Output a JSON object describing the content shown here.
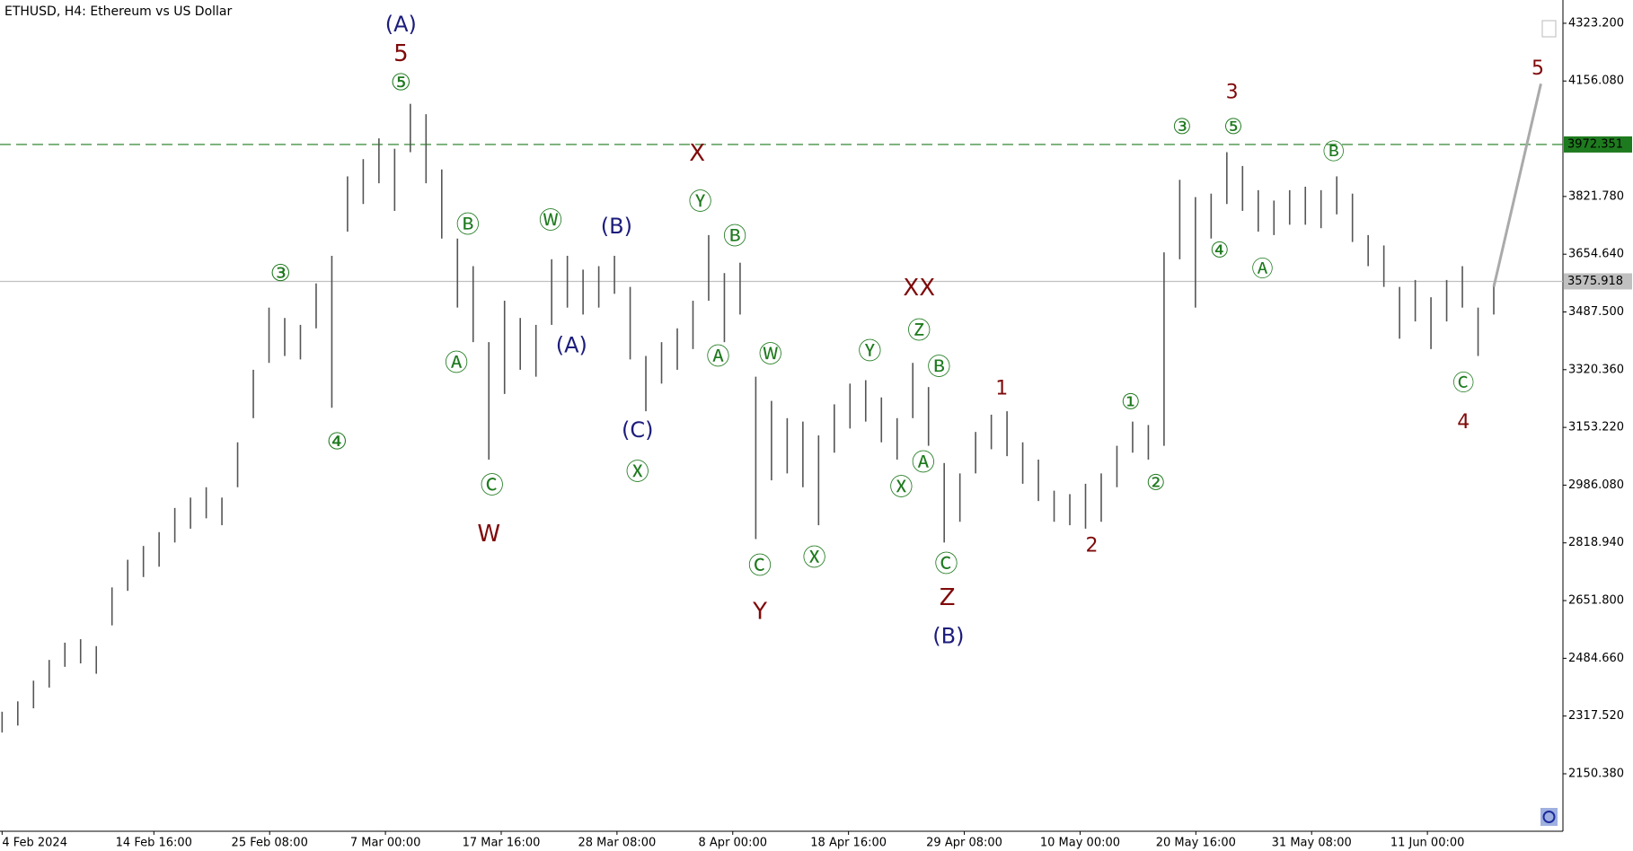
{
  "chart_data": {
    "type": "ohlc",
    "title": "ETHUSD, H4:  Ethereum vs US Dollar",
    "color": "#555555",
    "low": [
      2270,
      2290,
      2340,
      2400,
      2460,
      2470,
      2440,
      2580,
      2680,
      2720,
      2750,
      2820,
      2860,
      2890,
      2870,
      2980,
      3180,
      3340,
      3360,
      3350,
      3440,
      3210,
      3720,
      3800,
      3860,
      3780,
      3950,
      3860,
      3700,
      3500,
      3400,
      3060,
      3250,
      3320,
      3300,
      3450,
      3500,
      3480,
      3500,
      3540,
      3350,
      3200,
      3280,
      3320,
      3380,
      3520,
      3400,
      3480,
      2830,
      3000,
      3020,
      2980,
      2870,
      3080,
      3150,
      3170,
      3110,
      3060,
      3180,
      3100,
      2820,
      2880,
      3020,
      3090,
      3070,
      2990,
      2940,
      2880,
      2870,
      2860,
      2880,
      2980,
      3080,
      3060,
      3100,
      3640,
      3500,
      3700,
      3800,
      3780,
      3720,
      3710,
      3740,
      3740,
      3730,
      3770,
      3690,
      3620,
      3560,
      3410,
      3460,
      3380,
      3460,
      3500,
      3360,
      3480
    ],
    "high": [
      2330,
      2360,
      2420,
      2480,
      2530,
      2540,
      2520,
      2690,
      2770,
      2810,
      2850,
      2920,
      2950,
      2980,
      2950,
      3110,
      3320,
      3500,
      3470,
      3450,
      3570,
      3650,
      3880,
      3930,
      3990,
      3960,
      4090,
      4060,
      3900,
      3700,
      3620,
      3400,
      3520,
      3470,
      3450,
      3640,
      3650,
      3610,
      3620,
      3650,
      3560,
      3360,
      3400,
      3440,
      3520,
      3710,
      3600,
      3630,
      3300,
      3230,
      3180,
      3170,
      3130,
      3220,
      3280,
      3290,
      3240,
      3180,
      3340,
      3270,
      3050,
      3020,
      3140,
      3190,
      3200,
      3110,
      3060,
      2970,
      2960,
      2990,
      3020,
      3100,
      3170,
      3160,
      3660,
      3870,
      3820,
      3830,
      3950,
      3910,
      3840,
      3810,
      3840,
      3850,
      3840,
      3880,
      3830,
      3710,
      3680,
      3560,
      3580,
      3530,
      3580,
      3620,
      3500,
      3570
    ],
    "projection": {
      "color": "#aaaaaa",
      "x": [
        95,
        98
      ],
      "values": [
        3560,
        4148
      ]
    },
    "ylim": [
      1984,
      4375
    ],
    "yticks": [
      {
        "value": 2150.38,
        "label": "2150.380"
      },
      {
        "value": 2317.52,
        "label": "2317.520"
      },
      {
        "value": 2484.66,
        "label": "2484.660"
      },
      {
        "value": 2651.8,
        "label": "2651.800"
      },
      {
        "value": 2818.94,
        "label": "2818.940"
      },
      {
        "value": 2986.08,
        "label": "2986.080"
      },
      {
        "value": 3153.22,
        "label": "3153.220"
      },
      {
        "value": 3320.36,
        "label": "3320.360"
      },
      {
        "value": 3487.5,
        "label": "3487.500"
      },
      {
        "value": 3654.64,
        "label": "3654.640"
      },
      {
        "value": 3821.78,
        "label": "3821.780"
      },
      {
        "value": 4156.08,
        "label": "4156.080"
      },
      {
        "value": 4323.2,
        "label": "4323.200"
      }
    ],
    "xticks": [
      "4 Feb 2024",
      "14 Feb 16:00",
      "25 Feb 08:00",
      "7 Mar 00:00",
      "17 Mar 16:00",
      "28 Mar 08:00",
      "8 Apr 00:00",
      "18 Apr 16:00",
      "29 Apr 08:00",
      "10 May 00:00",
      "20 May 16:00",
      "31 May 08:00",
      "11 Jun 00:00"
    ],
    "hlines": [
      {
        "value": 3972.351,
        "color": "#1e7a1e",
        "style": "dashed"
      },
      {
        "value": 3575.918,
        "color": "#c0c0c0",
        "style": "solid"
      }
    ],
    "annotations": [
      {
        "text": "(A)",
        "color": "#1c1c7c"
      },
      {
        "text": "5",
        "color": "#7f0a0a"
      },
      {
        "text": "⑤",
        "color": "#1e7a1e"
      },
      {
        "text": "③",
        "color": "#1e7a1e"
      },
      {
        "text": "④",
        "color": "#1e7a1e"
      },
      {
        "text": "Ⓑ",
        "color": "#1e7a1e"
      },
      {
        "text": "Ⓐ",
        "color": "#1e7a1e"
      },
      {
        "text": "Ⓒ",
        "color": "#1e7a1e"
      },
      {
        "text": "W",
        "color": "#7f0a0a"
      },
      {
        "text": "Ⓦ",
        "color": "#1e7a1e"
      },
      {
        "text": "(B)",
        "color": "#1c1c7c"
      },
      {
        "text": "(A)",
        "color": "#1c1c7c"
      },
      {
        "text": "(C)",
        "color": "#1c1c7c"
      },
      {
        "text": "Ⓧ",
        "color": "#1e7a1e"
      },
      {
        "text": "X",
        "color": "#7f0a0a"
      },
      {
        "text": "Ⓨ",
        "color": "#1e7a1e"
      },
      {
        "text": "Ⓑ",
        "color": "#1e7a1e"
      },
      {
        "text": "Ⓐ",
        "color": "#1e7a1e"
      },
      {
        "text": "Ⓦ",
        "color": "#1e7a1e"
      },
      {
        "text": "Ⓒ",
        "color": "#1e7a1e"
      },
      {
        "text": "Y",
        "color": "#7f0a0a"
      },
      {
        "text": "Ⓧ",
        "color": "#1e7a1e"
      },
      {
        "text": "Ⓨ",
        "color": "#1e7a1e"
      },
      {
        "text": "XX",
        "color": "#7f0a0a"
      },
      {
        "text": "Ⓩ",
        "color": "#1e7a1e"
      },
      {
        "text": "Ⓑ",
        "color": "#1e7a1e"
      },
      {
        "text": "Ⓐ",
        "color": "#1e7a1e"
      },
      {
        "text": "Ⓧ",
        "color": "#1e7a1e"
      },
      {
        "text": "Ⓒ",
        "color": "#1e7a1e"
      },
      {
        "text": "Z",
        "color": "#7f0a0a"
      },
      {
        "text": "(B)",
        "color": "#1c1c7c"
      },
      {
        "text": "1",
        "color": "#7f0a0a"
      },
      {
        "text": "2",
        "color": "#7f0a0a"
      },
      {
        "text": "①",
        "color": "#1e7a1e"
      },
      {
        "text": "②",
        "color": "#1e7a1e"
      },
      {
        "text": "③",
        "color": "#1e7a1e"
      },
      {
        "text": "⑤",
        "color": "#1e7a1e"
      },
      {
        "text": "3",
        "color": "#7f0a0a"
      },
      {
        "text": "④",
        "color": "#1e7a1e"
      },
      {
        "text": "Ⓐ",
        "color": "#1e7a1e"
      },
      {
        "text": "Ⓑ",
        "color": "#1e7a1e"
      },
      {
        "text": "Ⓒ",
        "color": "#1e7a1e"
      },
      {
        "text": "4",
        "color": "#7f0a0a"
      },
      {
        "text": "5",
        "color": "#7f0a0a"
      }
    ]
  }
}
